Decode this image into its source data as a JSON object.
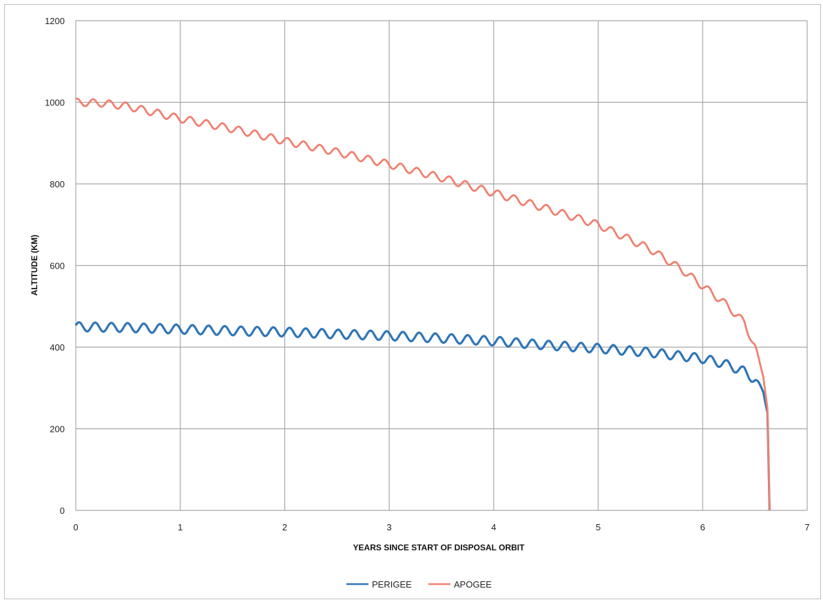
{
  "chart_data": {
    "type": "line",
    "title": "",
    "xlabel": "YEARS SINCE START OF DISPOSAL ORBIT",
    "ylabel": "ALTITUDE (KM)",
    "xlim": [
      0,
      7
    ],
    "ylim": [
      0,
      1200
    ],
    "xticks": [
      "0",
      "1",
      "2",
      "3",
      "4",
      "5",
      "6",
      "7"
    ],
    "yticks": [
      "0",
      "200",
      "400",
      "600",
      "800",
      "1000",
      "1200"
    ],
    "grid": true,
    "legend_position": "bottom",
    "series": [
      {
        "name": "PERIGEE",
        "color": "#2e75b6",
        "x": [
          0,
          0.5,
          1,
          1.5,
          2,
          2.5,
          3,
          3.5,
          4,
          4.5,
          5,
          5.5,
          6,
          6.2,
          6.4,
          6.5,
          6.58,
          6.62,
          6.64
        ],
        "y": [
          450,
          448,
          444,
          440,
          437,
          432,
          428,
          422,
          415,
          405,
          397,
          387,
          372,
          360,
          340,
          320,
          290,
          240,
          0
        ]
      },
      {
        "name": "APOGEE",
        "color": "#f08070",
        "x": [
          0,
          0.25,
          0.5,
          1,
          1.5,
          2,
          2.5,
          3,
          3.5,
          4,
          4.5,
          5,
          5.5,
          5.8,
          6,
          6.2,
          6.4,
          6.5,
          6.58,
          6.62,
          6.64
        ],
        "y": [
          1000,
          998,
          990,
          960,
          935,
          905,
          878,
          848,
          815,
          778,
          740,
          700,
          640,
          590,
          550,
          510,
          460,
          400,
          330,
          250,
          0
        ]
      }
    ]
  }
}
